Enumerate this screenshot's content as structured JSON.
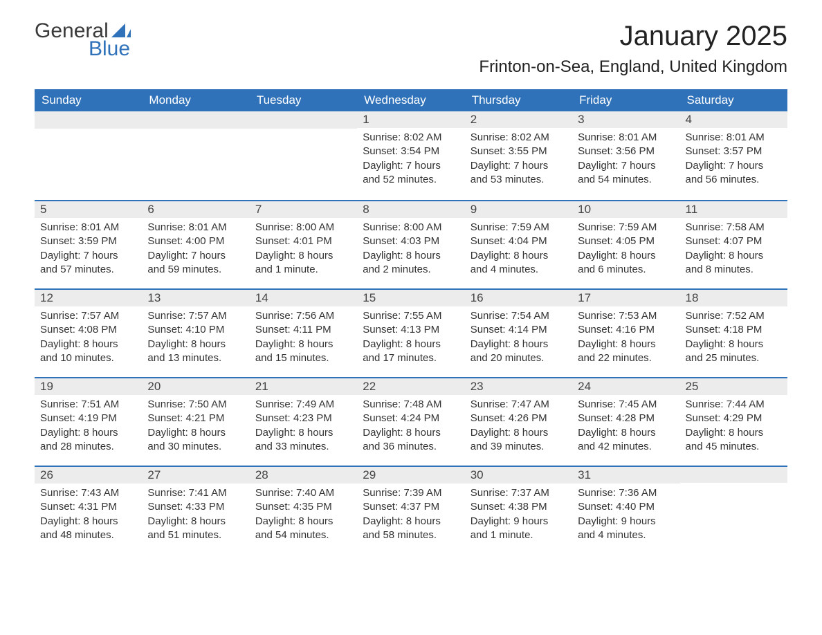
{
  "logo": {
    "text_a": "General",
    "text_b": "Blue",
    "sail_color": "#2f72b9"
  },
  "title": "January 2025",
  "location": "Frinton-on-Sea, England, United Kingdom",
  "colors": {
    "header_bg": "#2f72b9",
    "header_text": "#ffffff",
    "daynum_bg": "#ececec",
    "daynum_border": "#2f72b9",
    "body_text": "#333333",
    "page_bg": "#ffffff"
  },
  "days_of_week": [
    "Sunday",
    "Monday",
    "Tuesday",
    "Wednesday",
    "Thursday",
    "Friday",
    "Saturday"
  ],
  "weeks": [
    [
      null,
      null,
      null,
      {
        "n": "1",
        "sunrise": "Sunrise: 8:02 AM",
        "sunset": "Sunset: 3:54 PM",
        "dl1": "Daylight: 7 hours",
        "dl2": "and 52 minutes."
      },
      {
        "n": "2",
        "sunrise": "Sunrise: 8:02 AM",
        "sunset": "Sunset: 3:55 PM",
        "dl1": "Daylight: 7 hours",
        "dl2": "and 53 minutes."
      },
      {
        "n": "3",
        "sunrise": "Sunrise: 8:01 AM",
        "sunset": "Sunset: 3:56 PM",
        "dl1": "Daylight: 7 hours",
        "dl2": "and 54 minutes."
      },
      {
        "n": "4",
        "sunrise": "Sunrise: 8:01 AM",
        "sunset": "Sunset: 3:57 PM",
        "dl1": "Daylight: 7 hours",
        "dl2": "and 56 minutes."
      }
    ],
    [
      {
        "n": "5",
        "sunrise": "Sunrise: 8:01 AM",
        "sunset": "Sunset: 3:59 PM",
        "dl1": "Daylight: 7 hours",
        "dl2": "and 57 minutes."
      },
      {
        "n": "6",
        "sunrise": "Sunrise: 8:01 AM",
        "sunset": "Sunset: 4:00 PM",
        "dl1": "Daylight: 7 hours",
        "dl2": "and 59 minutes."
      },
      {
        "n": "7",
        "sunrise": "Sunrise: 8:00 AM",
        "sunset": "Sunset: 4:01 PM",
        "dl1": "Daylight: 8 hours",
        "dl2": "and 1 minute."
      },
      {
        "n": "8",
        "sunrise": "Sunrise: 8:00 AM",
        "sunset": "Sunset: 4:03 PM",
        "dl1": "Daylight: 8 hours",
        "dl2": "and 2 minutes."
      },
      {
        "n": "9",
        "sunrise": "Sunrise: 7:59 AM",
        "sunset": "Sunset: 4:04 PM",
        "dl1": "Daylight: 8 hours",
        "dl2": "and 4 minutes."
      },
      {
        "n": "10",
        "sunrise": "Sunrise: 7:59 AM",
        "sunset": "Sunset: 4:05 PM",
        "dl1": "Daylight: 8 hours",
        "dl2": "and 6 minutes."
      },
      {
        "n": "11",
        "sunrise": "Sunrise: 7:58 AM",
        "sunset": "Sunset: 4:07 PM",
        "dl1": "Daylight: 8 hours",
        "dl2": "and 8 minutes."
      }
    ],
    [
      {
        "n": "12",
        "sunrise": "Sunrise: 7:57 AM",
        "sunset": "Sunset: 4:08 PM",
        "dl1": "Daylight: 8 hours",
        "dl2": "and 10 minutes."
      },
      {
        "n": "13",
        "sunrise": "Sunrise: 7:57 AM",
        "sunset": "Sunset: 4:10 PM",
        "dl1": "Daylight: 8 hours",
        "dl2": "and 13 minutes."
      },
      {
        "n": "14",
        "sunrise": "Sunrise: 7:56 AM",
        "sunset": "Sunset: 4:11 PM",
        "dl1": "Daylight: 8 hours",
        "dl2": "and 15 minutes."
      },
      {
        "n": "15",
        "sunrise": "Sunrise: 7:55 AM",
        "sunset": "Sunset: 4:13 PM",
        "dl1": "Daylight: 8 hours",
        "dl2": "and 17 minutes."
      },
      {
        "n": "16",
        "sunrise": "Sunrise: 7:54 AM",
        "sunset": "Sunset: 4:14 PM",
        "dl1": "Daylight: 8 hours",
        "dl2": "and 20 minutes."
      },
      {
        "n": "17",
        "sunrise": "Sunrise: 7:53 AM",
        "sunset": "Sunset: 4:16 PM",
        "dl1": "Daylight: 8 hours",
        "dl2": "and 22 minutes."
      },
      {
        "n": "18",
        "sunrise": "Sunrise: 7:52 AM",
        "sunset": "Sunset: 4:18 PM",
        "dl1": "Daylight: 8 hours",
        "dl2": "and 25 minutes."
      }
    ],
    [
      {
        "n": "19",
        "sunrise": "Sunrise: 7:51 AM",
        "sunset": "Sunset: 4:19 PM",
        "dl1": "Daylight: 8 hours",
        "dl2": "and 28 minutes."
      },
      {
        "n": "20",
        "sunrise": "Sunrise: 7:50 AM",
        "sunset": "Sunset: 4:21 PM",
        "dl1": "Daylight: 8 hours",
        "dl2": "and 30 minutes."
      },
      {
        "n": "21",
        "sunrise": "Sunrise: 7:49 AM",
        "sunset": "Sunset: 4:23 PM",
        "dl1": "Daylight: 8 hours",
        "dl2": "and 33 minutes."
      },
      {
        "n": "22",
        "sunrise": "Sunrise: 7:48 AM",
        "sunset": "Sunset: 4:24 PM",
        "dl1": "Daylight: 8 hours",
        "dl2": "and 36 minutes."
      },
      {
        "n": "23",
        "sunrise": "Sunrise: 7:47 AM",
        "sunset": "Sunset: 4:26 PM",
        "dl1": "Daylight: 8 hours",
        "dl2": "and 39 minutes."
      },
      {
        "n": "24",
        "sunrise": "Sunrise: 7:45 AM",
        "sunset": "Sunset: 4:28 PM",
        "dl1": "Daylight: 8 hours",
        "dl2": "and 42 minutes."
      },
      {
        "n": "25",
        "sunrise": "Sunrise: 7:44 AM",
        "sunset": "Sunset: 4:29 PM",
        "dl1": "Daylight: 8 hours",
        "dl2": "and 45 minutes."
      }
    ],
    [
      {
        "n": "26",
        "sunrise": "Sunrise: 7:43 AM",
        "sunset": "Sunset: 4:31 PM",
        "dl1": "Daylight: 8 hours",
        "dl2": "and 48 minutes."
      },
      {
        "n": "27",
        "sunrise": "Sunrise: 7:41 AM",
        "sunset": "Sunset: 4:33 PM",
        "dl1": "Daylight: 8 hours",
        "dl2": "and 51 minutes."
      },
      {
        "n": "28",
        "sunrise": "Sunrise: 7:40 AM",
        "sunset": "Sunset: 4:35 PM",
        "dl1": "Daylight: 8 hours",
        "dl2": "and 54 minutes."
      },
      {
        "n": "29",
        "sunrise": "Sunrise: 7:39 AM",
        "sunset": "Sunset: 4:37 PM",
        "dl1": "Daylight: 8 hours",
        "dl2": "and 58 minutes."
      },
      {
        "n": "30",
        "sunrise": "Sunrise: 7:37 AM",
        "sunset": "Sunset: 4:38 PM",
        "dl1": "Daylight: 9 hours",
        "dl2": "and 1 minute."
      },
      {
        "n": "31",
        "sunrise": "Sunrise: 7:36 AM",
        "sunset": "Sunset: 4:40 PM",
        "dl1": "Daylight: 9 hours",
        "dl2": "and 4 minutes."
      },
      null
    ]
  ]
}
